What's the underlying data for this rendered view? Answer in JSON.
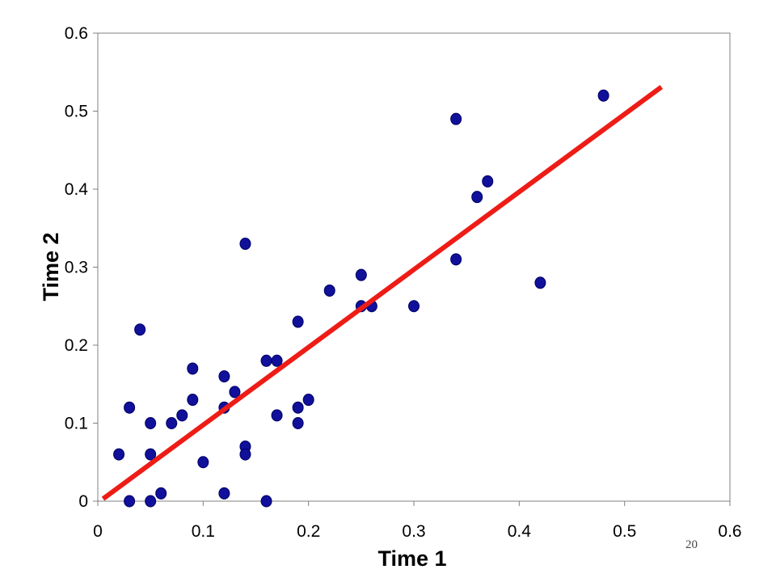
{
  "slide": {
    "number": "20"
  },
  "chart_data": {
    "type": "scatter",
    "title": "",
    "xlabel": "Time 1",
    "ylabel": "Time 2",
    "xlim": [
      0,
      0.6
    ],
    "ylim": [
      0,
      0.6
    ],
    "xticks": [
      "0",
      "0.1",
      "0.2",
      "0.3",
      "0.4",
      "0.5",
      "0.6"
    ],
    "yticks": [
      "0",
      "0.1",
      "0.2",
      "0.3",
      "0.4",
      "0.5",
      "0.6"
    ],
    "grid": false,
    "legend": "none",
    "colors": {
      "points": "#10109a",
      "point_edge": "#000066",
      "trend": "#ee1c16",
      "axes": "#808080"
    },
    "series": [
      {
        "points": [
          [
            0.02,
            0.06
          ],
          [
            0.03,
            0.12
          ],
          [
            0.03,
            0.0
          ],
          [
            0.04,
            0.22
          ],
          [
            0.05,
            0.1
          ],
          [
            0.05,
            0.06
          ],
          [
            0.05,
            0.0
          ],
          [
            0.06,
            0.01
          ],
          [
            0.07,
            0.1
          ],
          [
            0.08,
            0.11
          ],
          [
            0.09,
            0.17
          ],
          [
            0.09,
            0.13
          ],
          [
            0.1,
            0.05
          ],
          [
            0.12,
            0.16
          ],
          [
            0.12,
            0.12
          ],
          [
            0.12,
            0.01
          ],
          [
            0.13,
            0.14
          ],
          [
            0.14,
            0.33
          ],
          [
            0.14,
            0.07
          ],
          [
            0.14,
            0.06
          ],
          [
            0.16,
            0.18
          ],
          [
            0.16,
            0.0
          ],
          [
            0.17,
            0.18
          ],
          [
            0.17,
            0.11
          ],
          [
            0.19,
            0.23
          ],
          [
            0.19,
            0.12
          ],
          [
            0.19,
            0.1
          ],
          [
            0.2,
            0.13
          ],
          [
            0.22,
            0.27
          ],
          [
            0.25,
            0.29
          ],
          [
            0.25,
            0.25
          ],
          [
            0.26,
            0.25
          ],
          [
            0.3,
            0.25
          ],
          [
            0.34,
            0.49
          ],
          [
            0.34,
            0.31
          ],
          [
            0.36,
            0.39
          ],
          [
            0.37,
            0.41
          ],
          [
            0.42,
            0.28
          ],
          [
            0.48,
            0.52
          ]
        ]
      }
    ],
    "trendline": {
      "x": [
        0.005,
        0.535
      ],
      "y": [
        0.003,
        0.531
      ]
    }
  }
}
